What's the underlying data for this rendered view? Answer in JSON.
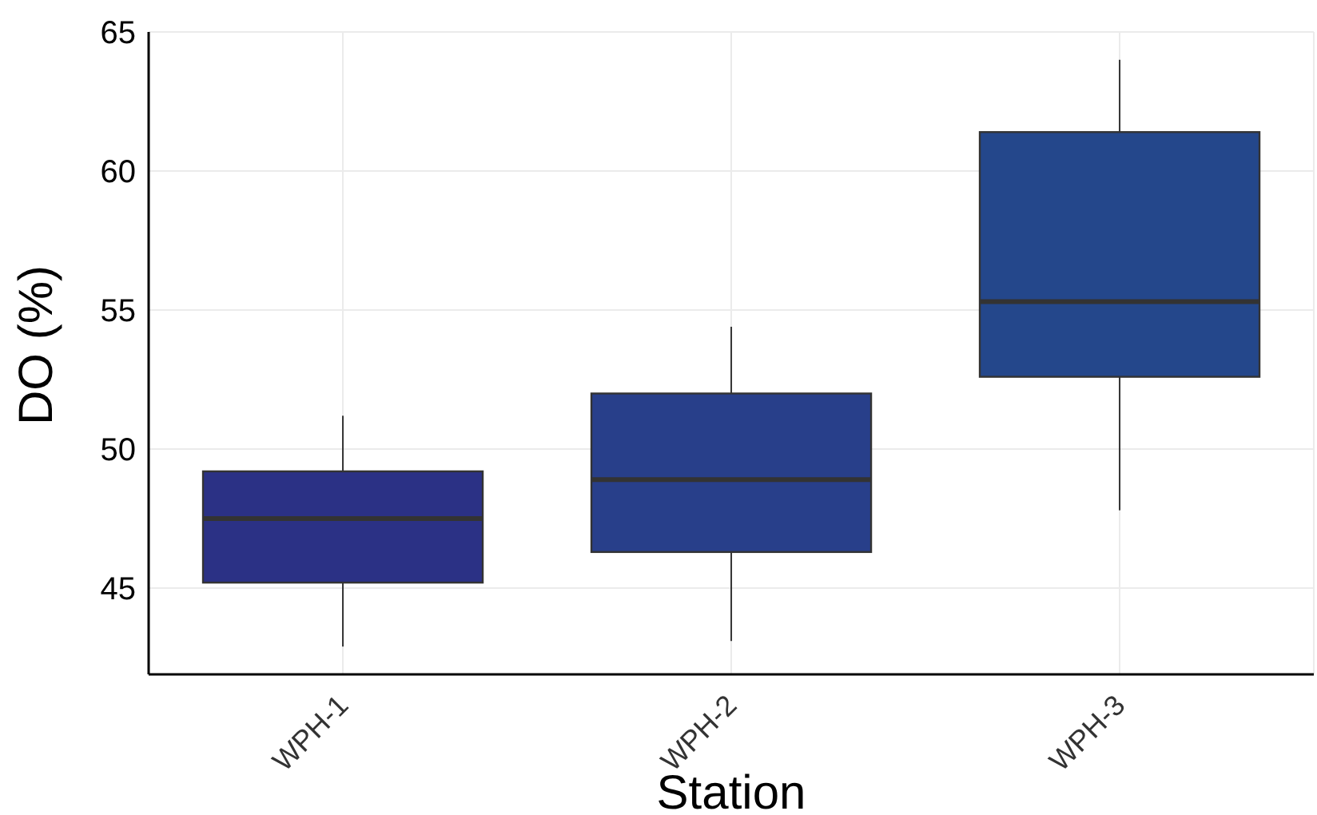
{
  "chart_data": {
    "type": "box",
    "xlabel": "Station",
    "ylabel": "DO (%)",
    "categories": [
      "WPH-1",
      "WPH-2",
      "WPH-3"
    ],
    "boxes": [
      {
        "low": 42.9,
        "q1": 45.2,
        "median": 47.5,
        "q3": 49.2,
        "high": 51.2
      },
      {
        "low": 43.1,
        "q1": 46.3,
        "median": 48.9,
        "q3": 52.0,
        "high": 54.4
      },
      {
        "low": 47.8,
        "q1": 52.6,
        "median": 55.3,
        "q3": 61.4,
        "high": 64.0
      }
    ],
    "colors": [
      "#2b3185",
      "#283f8a",
      "#24478b"
    ],
    "ylim": [
      41.9,
      65
    ],
    "yticks": [
      45,
      50,
      55,
      60,
      65
    ],
    "grid": true
  }
}
